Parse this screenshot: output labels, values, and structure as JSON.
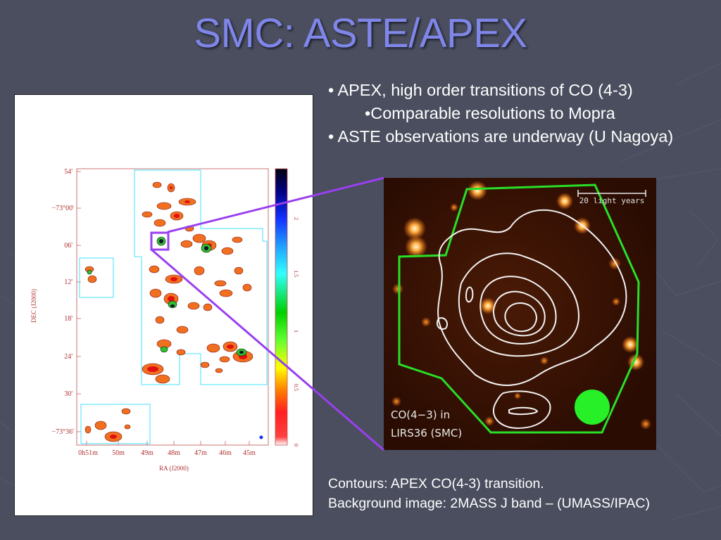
{
  "slide": {
    "title": "SMC: ASTE/APEX",
    "bullets": [
      "• APEX, high order transitions of CO (4-3)",
      "•Comparable resolutions to Mopra",
      "• ASTE observations are underway (U Nagoya)"
    ],
    "caption_lines": [
      "Contours: APEX CO(4-3) transition.",
      "Background image: 2MASS J band – (UMASS/IPAC)"
    ]
  },
  "survey_map": {
    "y_axis_label": "DEC (J2000)",
    "x_axis_label": "RA (J2000)",
    "y_ticks": [
      "54'",
      "−73°00'",
      "06'",
      "12'",
      "18'",
      "24'",
      "30'",
      "−73°36'"
    ],
    "x_ticks": [
      "0h51m",
      "50m",
      "49m",
      "48m",
      "47m",
      "46m",
      "45m"
    ],
    "colorbar_ticks": [
      "2",
      "1.5",
      "1",
      "0.5",
      "0"
    ]
  },
  "co_inset": {
    "scale_label": "20 light years",
    "label_line1": "CO(4−3) in",
    "label_line2": "LIRS36 (SMC)"
  },
  "colors": {
    "title": "#7f86e8",
    "connector": "#9a3ff0",
    "field_outline": "#40e0ff",
    "polygon": "#28e028",
    "beam": "#28f028"
  }
}
